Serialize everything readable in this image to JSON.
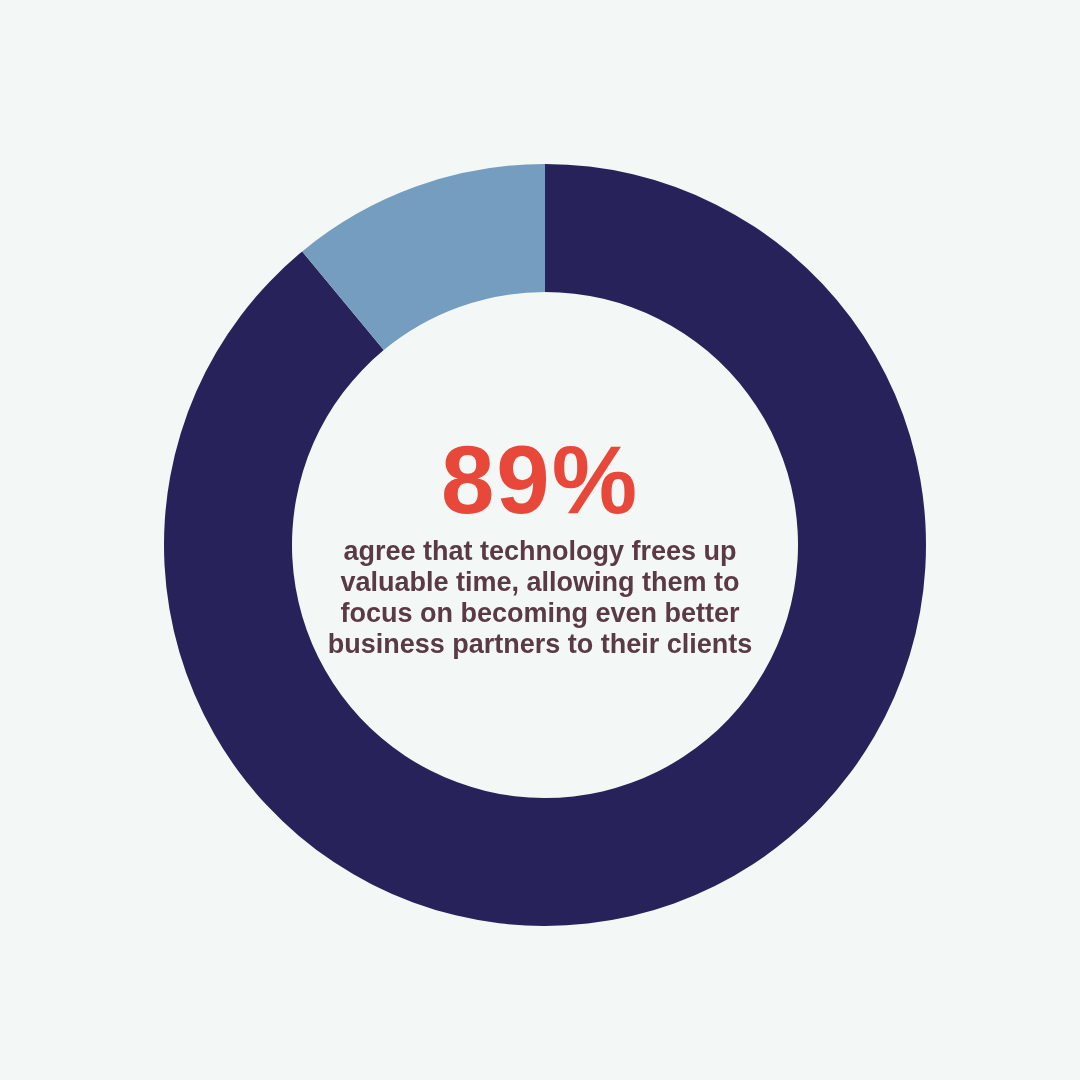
{
  "chart_data": {
    "type": "donut",
    "title": "89%",
    "subtitle": "agree that technology frees up valuable time, allowing them to focus on becoming even better business partners to their clients",
    "categories": [
      null,
      null
    ],
    "values": [
      89,
      11
    ],
    "colors": [
      "#27235a",
      "#759dbf"
    ]
  }
}
